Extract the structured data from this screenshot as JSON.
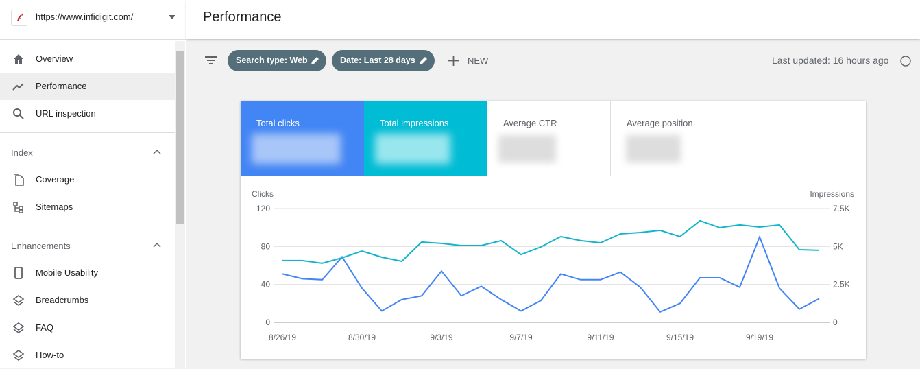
{
  "sidebar": {
    "site": "https://www.infidigit.com/",
    "nav": [
      "Overview",
      "Performance",
      "URL inspection"
    ],
    "sections": [
      {
        "title": "Index",
        "items": [
          "Coverage",
          "Sitemaps"
        ]
      },
      {
        "title": "Enhancements",
        "items": [
          "Mobile Usability",
          "Breadcrumbs",
          "FAQ",
          "How-to"
        ]
      }
    ]
  },
  "header": {
    "title": "Performance"
  },
  "toolbar": {
    "filters": [
      "Search type: Web",
      "Date: Last 28 days"
    ],
    "new": "NEW",
    "last_updated": "Last updated: 16 hours ago"
  },
  "metrics": [
    "Total clicks",
    "Total impressions",
    "Average CTR",
    "Average position"
  ],
  "chart_data": {
    "type": "line",
    "y_label": "Clicks",
    "y2_label": "Impressions",
    "categories": [
      "8/26/19",
      null,
      null,
      null,
      "8/30/19",
      null,
      null,
      null,
      "9/3/19",
      null,
      null,
      null,
      "9/7/19",
      null,
      null,
      null,
      "9/11/19",
      null,
      null,
      null,
      "9/15/19",
      null,
      null,
      null,
      "9/19/19",
      null,
      null,
      null
    ],
    "series": [
      {
        "name": "Clicks",
        "color": "#4285f4",
        "values": [
          51,
          46,
          45,
          69,
          36,
          12,
          24,
          28,
          54,
          28,
          38,
          24,
          12,
          23,
          51,
          45,
          45,
          53,
          37,
          11,
          20,
          47,
          47,
          37,
          90,
          36,
          14,
          25
        ]
      },
      {
        "name": "Impressions",
        "color": "#12b5cb",
        "axis": "y2",
        "values": [
          4070,
          4070,
          3890,
          4250,
          4700,
          4290,
          4020,
          5290,
          5200,
          5060,
          5060,
          5380,
          4470,
          4970,
          5650,
          5380,
          5240,
          5830,
          5920,
          6060,
          5650,
          6690,
          6240,
          6420,
          6280,
          6420,
          4790,
          4750
        ]
      }
    ],
    "ylim": [
      0,
      120
    ],
    "yticks": [
      0,
      40,
      80,
      120
    ],
    "y2lim": [
      0,
      7500
    ],
    "y2ticks": [
      0,
      {
        "value": 2500,
        "label": "2.5K"
      },
      {
        "value": 5000,
        "label": "5K"
      },
      {
        "value": 7500,
        "label": "7.5K"
      }
    ],
    "grid": true
  }
}
